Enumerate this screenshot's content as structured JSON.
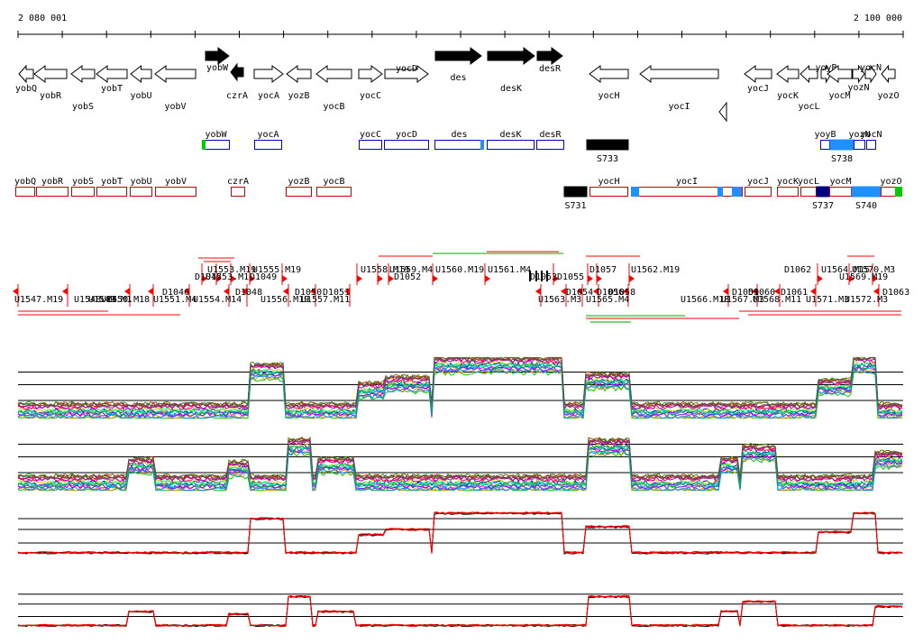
{
  "ruler": {
    "start_label": "2 080 001",
    "end_label": "2 100 000"
  },
  "genes_top": [
    {
      "name": "yobQ",
      "x1": 21,
      "x2": 37,
      "dir": "L",
      "filled": false,
      "label_pos": "below"
    },
    {
      "name": "yobR",
      "x1": 38,
      "x2": 74,
      "dir": "L",
      "filled": false,
      "label_pos": "below2"
    },
    {
      "name": "yobS",
      "x1": 79,
      "x2": 105,
      "dir": "L",
      "filled": false,
      "label_pos": "below3"
    },
    {
      "name": "yobT",
      "x1": 107,
      "x2": 141,
      "dir": "L",
      "filled": false,
      "label_pos": "below"
    },
    {
      "name": "yobU",
      "x1": 145,
      "x2": 168,
      "dir": "L",
      "filled": false,
      "label_pos": "below2"
    },
    {
      "name": "yobV",
      "x1": 172,
      "x2": 217,
      "dir": "L",
      "filled": false,
      "label_pos": "below3"
    },
    {
      "name": "yobW",
      "x1": 228,
      "x2": 254,
      "dir": "R",
      "filled": true,
      "label_pos": "below_up"
    },
    {
      "name": "czrA",
      "x1": 256,
      "x2": 270,
      "dir": "L",
      "filled": true,
      "label_pos": "below2",
      "row": "low"
    },
    {
      "name": "yocA",
      "x1": 282,
      "x2": 314,
      "dir": "R",
      "filled": false,
      "label_pos": "below2"
    },
    {
      "name": "yozB",
      "x1": 318,
      "x2": 345,
      "dir": "L",
      "filled": false,
      "label_pos": "below2"
    },
    {
      "name": "yocB",
      "x1": 351,
      "x2": 390,
      "dir": "L",
      "filled": false,
      "label_pos": "below3"
    },
    {
      "name": "yocC",
      "x1": 398,
      "x2": 424,
      "dir": "R",
      "filled": false,
      "label_pos": "below2"
    },
    {
      "name": "yocD",
      "x1": 427,
      "x2": 475,
      "dir": "R",
      "filled": false,
      "label_pos": "below_up"
    },
    {
      "name": "des",
      "x1": 483,
      "x2": 534,
      "dir": "R",
      "filled": true,
      "label_pos": "below"
    },
    {
      "name": "desK",
      "x1": 541,
      "x2": 593,
      "dir": "R",
      "filled": true,
      "label_pos": "below2"
    },
    {
      "name": "desR",
      "x1": 596,
      "x2": 624,
      "dir": "R",
      "filled": true,
      "label_pos": "below_up"
    },
    {
      "name": "yocH",
      "x1": 654,
      "x2": 697,
      "dir": "L",
      "filled": false,
      "label_pos": "below2"
    },
    {
      "name": "yocI",
      "x1": 710,
      "x2": 797,
      "dir": "L",
      "filled": false,
      "label_pos": "below3"
    },
    {
      "name": "yocJ",
      "x1": 826,
      "x2": 856,
      "dir": "L",
      "filled": false,
      "label_pos": "below"
    },
    {
      "name": "yocK",
      "x1": 862,
      "x2": 886,
      "dir": "L",
      "filled": false,
      "label_pos": "below2"
    },
    {
      "name": "yocL",
      "x1": 888,
      "x2": 907,
      "dir": "L",
      "filled": false,
      "label_pos": "below3"
    },
    {
      "name": "yoyB",
      "x1": 911,
      "x2": 922,
      "dir": "R",
      "filled": false,
      "label_pos": "below_up"
    },
    {
      "name": "yocM",
      "x1": 918,
      "x2": 945,
      "dir": "L",
      "filled": false,
      "label_pos": "below2"
    },
    {
      "name": "yozN",
      "x1": 946,
      "x2": 959,
      "dir": "R",
      "filled": false,
      "label_pos": "below"
    },
    {
      "name": "yocN",
      "x1": 960,
      "x2": 972,
      "dir": "R",
      "filled": false,
      "label_pos": "below_up"
    },
    {
      "name": "yozO",
      "x1": 978,
      "x2": 993,
      "dir": "L",
      "filled": false,
      "label_pos": "below2"
    }
  ],
  "orphan_arrow": {
    "x": 806,
    "y": 124
  },
  "segments_plus_labels": [
    "yobW",
    "yocA",
    "yocC",
    "yocD",
    "des",
    "desK",
    "desR",
    "yoyB",
    "yozN",
    "yocN",
    "S733",
    "S738"
  ],
  "segments_minus_labels": [
    "yobQ",
    "yobR",
    "yobS",
    "yobT",
    "yobU",
    "yobV",
    "czrA",
    "yozB",
    "yocB",
    "yocH",
    "yocI",
    "yocJ",
    "yocK",
    "yocL",
    "yocM",
    "yozO",
    "S731",
    "S737",
    "S740"
  ],
  "segments_plus": [
    {
      "label": "yobW",
      "x1": 224,
      "x2": 255,
      "color": "#0000cc",
      "fill": "green_left"
    },
    {
      "label": "yocA",
      "x1": 282,
      "x2": 313,
      "color": "#0000cc"
    },
    {
      "label": "yocC",
      "x1": 398,
      "x2": 424,
      "color": "#0000cc"
    },
    {
      "label": "yocD",
      "x1": 426,
      "x2": 476,
      "color": "#0000cc"
    },
    {
      "label": "des",
      "x1": 482,
      "x2": 537,
      "color": "#0000cc",
      "fill": "blue_right"
    },
    {
      "label": "desK",
      "x1": 540,
      "x2": 593,
      "color": "#0000cc"
    },
    {
      "label": "desR",
      "x1": 595,
      "x2": 626,
      "color": "#0000cc"
    },
    {
      "label": "S733",
      "x1": 651,
      "x2": 697,
      "color": "#000000",
      "solid": true
    },
    {
      "label": "yoyB",
      "x1": 910,
      "x2": 921,
      "color": "#0000cc"
    },
    {
      "label": "S738",
      "x1": 921,
      "x2": 947,
      "color": "#1e90ff",
      "solid": true
    },
    {
      "label": "yozN",
      "x1": 947,
      "x2": 960,
      "color": "#0000cc"
    },
    {
      "label": "yocN",
      "x1": 961,
      "x2": 972,
      "color": "#0000cc"
    }
  ],
  "segments_minus": [
    {
      "label": "yobQ",
      "x1": 17,
      "x2": 39,
      "color": "#cc0000"
    },
    {
      "label": "yobR",
      "x1": 40,
      "x2": 76,
      "color": "#cc0000"
    },
    {
      "label": "yobS",
      "x1": 79,
      "x2": 105,
      "color": "#cc0000"
    },
    {
      "label": "yobT",
      "x1": 107,
      "x2": 141,
      "color": "#cc0000"
    },
    {
      "label": "yobU",
      "x1": 144,
      "x2": 169,
      "color": "#cc0000"
    },
    {
      "label": "yobV",
      "x1": 172,
      "x2": 218,
      "color": "#cc0000"
    },
    {
      "label": "czrA",
      "x1": 256,
      "x2": 272,
      "color": "#cc0000"
    },
    {
      "label": "yozB",
      "x1": 317,
      "x2": 346,
      "color": "#cc0000"
    },
    {
      "label": "yocB",
      "x1": 351,
      "x2": 390,
      "color": "#cc0000"
    },
    {
      "label": "S731",
      "x1": 626,
      "x2": 651,
      "color": "#000000",
      "solid": true
    },
    {
      "label": "yocH",
      "x1": 654,
      "x2": 697,
      "color": "#cc0000"
    },
    {
      "label": "yocI",
      "x1": 700,
      "x2": 824,
      "color": "#cc0000"
    },
    {
      "label": "yocJ",
      "x1": 826,
      "x2": 856,
      "color": "#cc0000"
    },
    {
      "label": "yocK",
      "x1": 862,
      "x2": 886,
      "color": "#cc0000"
    },
    {
      "label": "yocL",
      "x1": 888,
      "x2": 906,
      "color": "#cc0000"
    },
    {
      "label": "S737",
      "x1": 906,
      "x2": 920,
      "color": "#000080",
      "solid": true
    },
    {
      "label": "yocM",
      "x1": 920,
      "x2": 945,
      "color": "#cc0000"
    },
    {
      "label": "S740",
      "x1": 945,
      "x2": 977,
      "color": "#1e90ff",
      "solid": true
    },
    {
      "label": "yozO",
      "x1": 977,
      "x2": 1000,
      "color": "#cc0000"
    }
  ],
  "upstream_labels_top": [
    "U1553.M19",
    "U1553.M1",
    "D1047",
    "D1049",
    "U1555.M19",
    "U1558.M19",
    "U1559.M4",
    "D1052",
    "U1560.M19",
    "U1561.M4",
    "D1053",
    "D1055",
    "D1057",
    "U1562.M19",
    "U1564.M15",
    "U1569.M19",
    "U1570.M3",
    "D1062"
  ],
  "upstream_labels_bottom": [
    "U1547.M19",
    "U1548.M4",
    "U1549.M1",
    "U1550.M18",
    "U1551.M4",
    "D1046",
    "U1554.M14",
    "D1048",
    "U1556.M19",
    "D1050",
    "U1557.M11",
    "D1051",
    "U1563.M3",
    "D1054",
    "U1565.M4",
    "D1056",
    "D1058",
    "U1566.M18",
    "U1567.M3",
    "D1059",
    "D1060",
    "U1568.M11",
    "D1061",
    "U1571.M3",
    "U1572.M3",
    "D1063"
  ],
  "track_colors": [
    "#ff0000",
    "#00cc00",
    "#0000ff",
    "#ff00ff",
    "#00cccc",
    "#cccc00",
    "#ff8800",
    "#8800ff",
    "#00ff88",
    "#884400",
    "#ff0088",
    "#0088ff",
    "#448800",
    "#aa00aa",
    "#00aa55",
    "#555555"
  ],
  "mean_colors": {
    "black": "#000000",
    "red": "#ff0000"
  }
}
